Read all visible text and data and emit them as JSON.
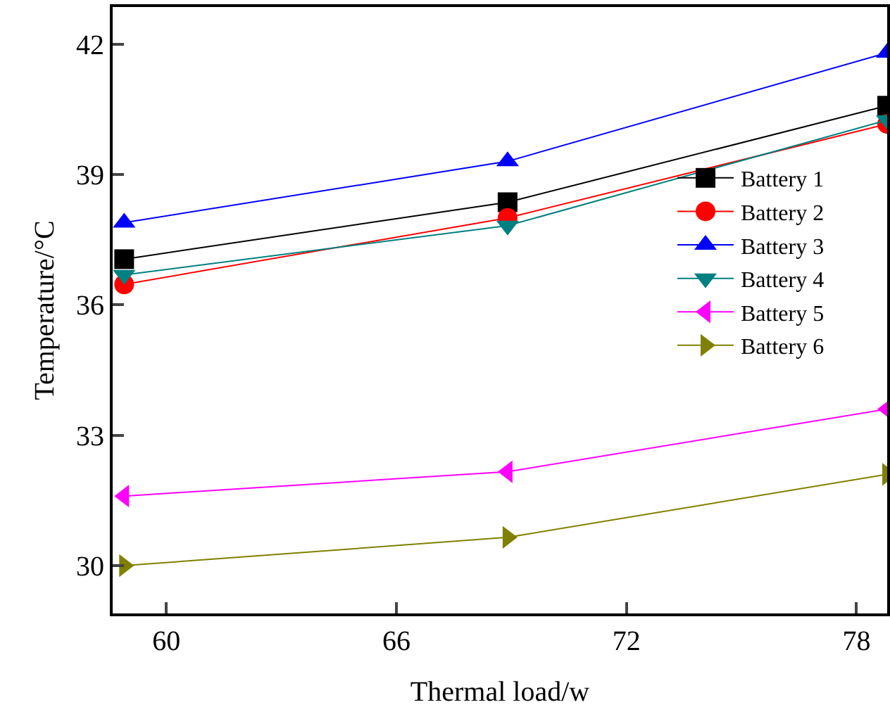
{
  "chart_data": {
    "type": "line",
    "xlabel": "Thermal load/w",
    "ylabel": "Temperature/°C",
    "x": [
      58.9,
      68.9,
      78.8
    ],
    "xlim": [
      58.6,
      78.8
    ],
    "xticks": [
      60,
      66,
      72,
      78
    ],
    "ylim": [
      28.9,
      42.85
    ],
    "yticks": [
      30,
      33,
      36,
      39,
      42
    ],
    "grid": false,
    "legend": "right",
    "series": [
      {
        "name": "Battery 1",
        "color": "#000000",
        "marker": "square",
        "values": [
          37.05,
          38.36,
          40.58
        ]
      },
      {
        "name": "Battery 2",
        "color": "#ff0000",
        "marker": "circle",
        "values": [
          36.47,
          38.0,
          40.16
        ]
      },
      {
        "name": "Battery 3",
        "color": "#0000ff",
        "marker": "triangle-up",
        "values": [
          37.89,
          39.3,
          41.8
        ]
      },
      {
        "name": "Battery 4",
        "color": "#008080",
        "marker": "triangle-down",
        "values": [
          36.69,
          37.82,
          40.25
        ]
      },
      {
        "name": "Battery 5",
        "color": "#ff00ff",
        "marker": "triangle-left",
        "values": [
          31.6,
          32.16,
          33.6
        ]
      },
      {
        "name": "Battery 6",
        "color": "#808000",
        "marker": "triangle-right",
        "values": [
          30.0,
          30.65,
          32.1
        ]
      }
    ]
  }
}
